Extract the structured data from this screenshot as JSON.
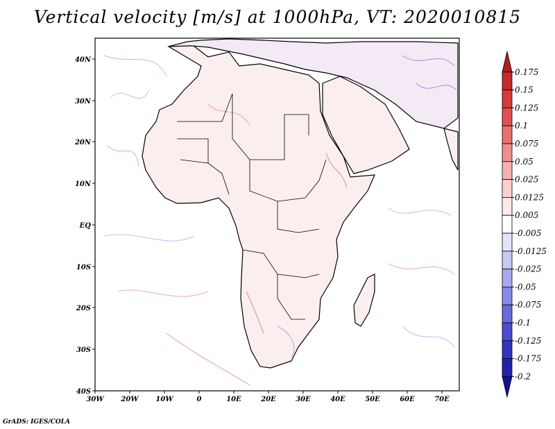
{
  "title": "Vertical velocity [m/s] at 1000hPa, VT: 2020010815",
  "credit": "GrADS: IGES/COLA",
  "map": {
    "lon_range": [
      -30,
      75
    ],
    "lat_range": [
      -40,
      45
    ],
    "lat_labels": [
      "40N",
      "30N",
      "20N",
      "10N",
      "EQ",
      "10S",
      "20S",
      "30S",
      "40S"
    ],
    "lon_labels": [
      "30W",
      "20W",
      "10W",
      "0",
      "10E",
      "20E",
      "30E",
      "40E",
      "50E",
      "60E",
      "70E"
    ]
  },
  "colorbar": {
    "labels": [
      "0.175",
      "0.15",
      "0.125",
      "0.1",
      "0.075",
      "0.05",
      "0.025",
      "0.0125",
      "0.005",
      "-0.005",
      "-0.0125",
      "-0.025",
      "-0.05",
      "-0.075",
      "-0.1",
      "-0.125",
      "-0.175",
      "-0.2"
    ],
    "colors": [
      "#b51e1e",
      "#c72a2a",
      "#d63a3a",
      "#e05252",
      "#e87070",
      "#ef8f8f",
      "#f5b1b1",
      "#fad0d0",
      "#fde9e9",
      "#ffffff",
      "#e4e4fb",
      "#c8c8f5",
      "#a8a8ee",
      "#8888e6",
      "#6a6adc",
      "#4c4cd0",
      "#3232c2",
      "#2222b0",
      "#14148f"
    ]
  }
}
